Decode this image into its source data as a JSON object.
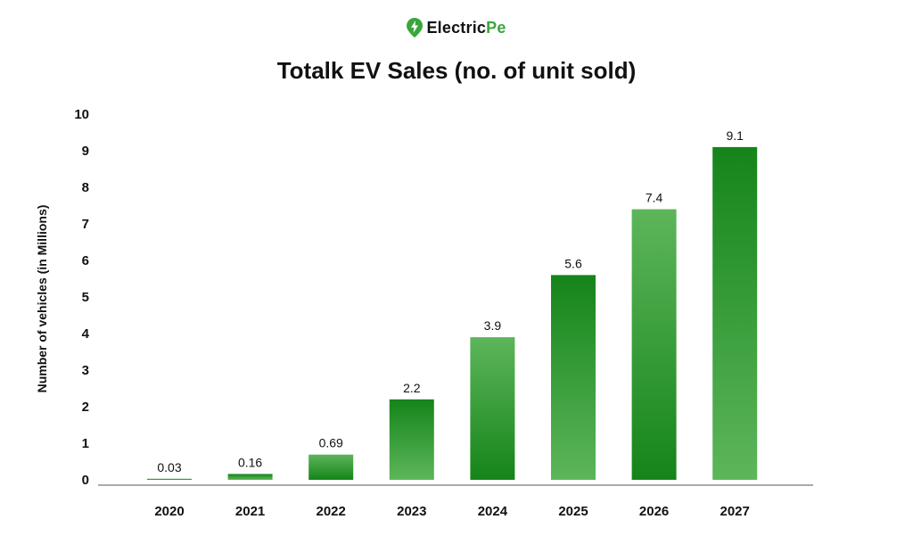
{
  "brand": {
    "name_main": "Electric",
    "name_accent": "Pe",
    "icon": "bolt-pin-icon",
    "accent_color": "#3aa63a"
  },
  "chart_data": {
    "type": "bar",
    "title": "Totalk EV Sales (no. of unit sold)",
    "xlabel": "",
    "ylabel": "Number of vehicles (in Millions)",
    "categories": [
      "2020",
      "2021",
      "2022",
      "2023",
      "2024",
      "2025",
      "2026",
      "2027"
    ],
    "values": [
      0.03,
      0.16,
      0.69,
      2.2,
      3.9,
      5.6,
      7.4,
      9.1
    ],
    "data_labels": [
      "0.03",
      "0.16",
      "0.69",
      "2.2",
      "3.9",
      "5.6",
      "7.4",
      "9.1"
    ],
    "ylim": [
      0,
      10
    ],
    "yticks": [
      0,
      1,
      2,
      3,
      4,
      5,
      6,
      7,
      8,
      9,
      10
    ],
    "grid": false,
    "legend": "none",
    "colors": {
      "bar_dark": "#15841a",
      "bar_light": "#5db65a",
      "axis": "#555555"
    }
  }
}
